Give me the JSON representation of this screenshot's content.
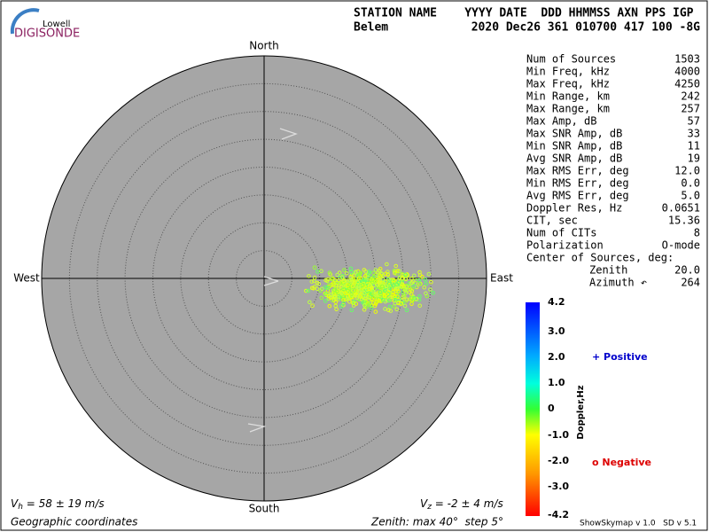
{
  "logo": {
    "top": "Lowell",
    "name": "DIGISONDE"
  },
  "header": {
    "columns": "STATION NAME    YYYY DATE  DDD HHMMSS AXN PPS IGP",
    "station": "Belem",
    "values": "2020 Dec26 361 010700 417 100 -8G"
  },
  "directions": {
    "north": "North",
    "south": "South",
    "west": "West",
    "east": "East"
  },
  "parameters": [
    [
      "Num of Sources",
      "1503"
    ],
    [
      "Min Freq, kHz",
      "4000"
    ],
    [
      "Max Freq, kHz",
      "4250"
    ],
    [
      "Min Range, km",
      "242"
    ],
    [
      "Max Range, km",
      "257"
    ],
    [
      "Max Amp, dB",
      "57"
    ],
    [
      "Max SNR Amp, dB",
      "33"
    ],
    [
      "Min SNR Amp, dB",
      "11"
    ],
    [
      "Avg SNR Amp, dB",
      "19"
    ],
    [
      "Max RMS Err, deg",
      "12.0"
    ],
    [
      "Min RMS Err, deg",
      "0.0"
    ],
    [
      "Avg RMS Err, deg",
      "5.0"
    ],
    [
      "Doppler Res, Hz",
      "0.0651"
    ],
    [
      "CIT, sec",
      "15.36"
    ],
    [
      "Num of CITs",
      "8"
    ],
    [
      "Polarization",
      "O-mode"
    ]
  ],
  "center": {
    "title": "Center of Sources, deg:",
    "rows": [
      [
        "Zenith",
        "20.0"
      ],
      [
        "Azimuth ↶",
        "264"
      ]
    ]
  },
  "colorbar": {
    "title": "Doppler,Hz",
    "labels": [
      "4.2",
      "3.0",
      "2.0",
      "1.0",
      "0",
      "-1.0",
      "-2.0",
      "-3.0",
      "-4.2"
    ]
  },
  "legend": {
    "positive": "+ Positive",
    "negative": "o Negative"
  },
  "footer": {
    "vh": {
      "symbol": "V",
      "sub": "h",
      "text": " = 58 ± 19 m/s"
    },
    "vz": {
      "symbol": "V",
      "sub": "z",
      "text": " = -2 ± 4 m/s"
    },
    "coords": "Geographic coordinates",
    "zenith": "Zenith: max 40°  step 5°",
    "version": "ShowSkymap v 1.0   SD v 5.1"
  }
}
